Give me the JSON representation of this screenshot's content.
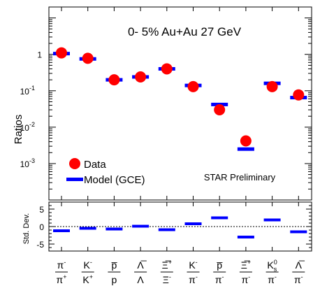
{
  "chart_data": [
    {
      "type": "scatter",
      "title": "0- 5% Au+Au 27 GeV",
      "annotation": "STAR Preliminary",
      "ylabel": "Ratios",
      "yscale": "log",
      "ylim": [
        0.0001,
        20
      ],
      "yticks": [
        {
          "v": 1,
          "main": "1",
          "exp": ""
        },
        {
          "v": 0.1,
          "main": "10",
          "exp": "-1"
        },
        {
          "v": 0.01,
          "main": "10",
          "exp": "-2"
        },
        {
          "v": 0.001,
          "main": "10",
          "exp": "-3"
        }
      ],
      "legend_position": "bottom-left",
      "series": [
        {
          "name": "Data",
          "color": "#ff0000",
          "marker": "circle",
          "values": [
            1.1,
            0.78,
            0.2,
            0.24,
            0.4,
            0.13,
            0.03,
            0.0042,
            0.13,
            0.077
          ]
        },
        {
          "name": "Model (GCE)",
          "color": "#0000ff",
          "marker": "hbar",
          "values": [
            1.05,
            0.75,
            0.2,
            0.24,
            0.4,
            0.14,
            0.042,
            0.0025,
            0.16,
            0.065
          ]
        }
      ]
    },
    {
      "type": "scatter",
      "ylabel": "Std. Dev.",
      "ylim": [
        -7,
        7
      ],
      "yticks": [
        {
          "v": 5,
          "main": "5"
        },
        {
          "v": 0,
          "main": "0"
        },
        {
          "v": -5,
          "main": "-5"
        }
      ],
      "zero_line": "dotted",
      "series": [
        {
          "name": "",
          "color": "#0000ff",
          "marker": "hbar",
          "values": [
            -1.2,
            -0.5,
            -0.7,
            0.1,
            -0.9,
            0.8,
            2.5,
            -3.0,
            1.9,
            -1.5
          ]
        }
      ]
    }
  ],
  "categories": [
    {
      "num": "π",
      "num_sup": "-",
      "den": "π",
      "den_sup": "+"
    },
    {
      "num": "K",
      "num_sup": "-",
      "den": "K",
      "den_sup": "+"
    },
    {
      "num": "p̅",
      "num_sup": "",
      "den": "p",
      "den_sup": ""
    },
    {
      "num": "Λ̅",
      "num_sup": "",
      "den": "Λ",
      "den_sup": ""
    },
    {
      "num": "Ξ̅",
      "num_sup": "+",
      "den": "Ξ",
      "den_sup": "-"
    },
    {
      "num": "K",
      "num_sup": "-",
      "den": "π",
      "den_sup": "-"
    },
    {
      "num": "p̅",
      "num_sup": "",
      "den": "π",
      "den_sup": "-"
    },
    {
      "num": "Ξ̅",
      "num_sup": "+",
      "den": "π",
      "den_sup": "-"
    },
    {
      "num": "K",
      "num_sup": "0",
      "num_sub": "s",
      "den": "π",
      "den_sup": "-"
    },
    {
      "num": "Λ̅",
      "num_sup": "",
      "den": "π",
      "den_sup": "-"
    }
  ]
}
